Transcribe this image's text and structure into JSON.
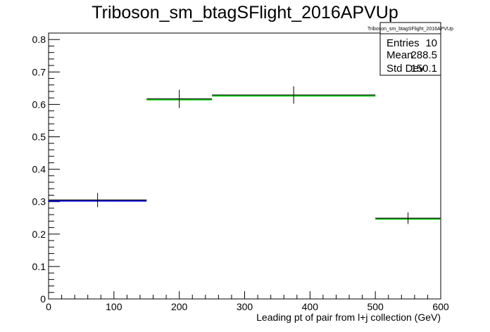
{
  "chart_data": {
    "type": "histogram",
    "title": "Triboson_sm_btagSFlight_2016APVUp",
    "xlabel": "Leading pt of pair from l+j collection (GeV)",
    "ylabel": "",
    "xlim": [
      0,
      600
    ],
    "ylim": [
      0,
      0.82
    ],
    "x_ticks": [
      0,
      100,
      200,
      300,
      400,
      500,
      600
    ],
    "y_ticks": [
      0,
      0.1,
      0.2,
      0.3,
      0.4,
      0.5,
      0.6,
      0.7,
      0.8
    ],
    "x_tick_labels": [
      "0",
      "100",
      "200",
      "300",
      "400",
      "500",
      "600"
    ],
    "y_tick_labels": [
      "0",
      "0.1",
      "0.2",
      "0.3",
      "0.4",
      "0.5",
      "0.6",
      "0.7",
      "0.8"
    ],
    "grid": false,
    "bins": [
      {
        "low": 0,
        "high": 150,
        "value": 0.305,
        "error": 0.022,
        "color": "#0000ff"
      },
      {
        "low": 150,
        "high": 250,
        "value": 0.617,
        "error": 0.028,
        "color": "#00cc00"
      },
      {
        "low": 250,
        "high": 500,
        "value": 0.629,
        "error": 0.027,
        "color": "#00cc00"
      },
      {
        "low": 500,
        "high": 600,
        "value": 0.249,
        "error": 0.018,
        "color": "#00cc00"
      }
    ],
    "stats_box": {
      "name": "Triboson_sm_btagSFlight_2016APVUp",
      "rows": [
        {
          "label": "Entries",
          "value": "10"
        },
        {
          "label": "Mean",
          "value": "288.5"
        },
        {
          "label": "Std Dev",
          "value": "150.1"
        }
      ]
    }
  }
}
